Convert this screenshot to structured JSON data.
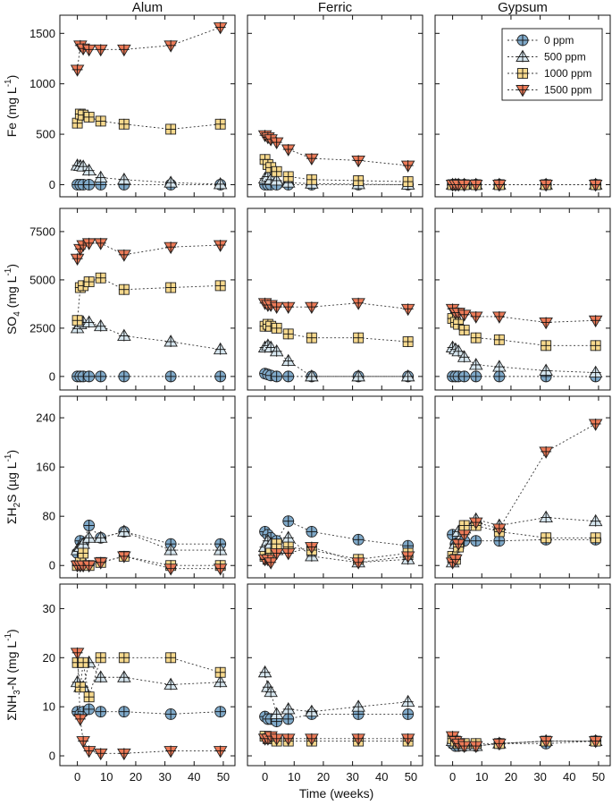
{
  "xlabel": "Time (weeks)",
  "columns": [
    "Alum",
    "Ferric",
    "Gypsum"
  ],
  "rows": [
    {
      "ylabel": "Fe (mg L-1)",
      "ylabel_parts": [
        "Fe (mg L",
        "-1",
        ")"
      ],
      "ylim": [
        -120,
        1680
      ],
      "yticks": [
        0,
        500,
        1000,
        1500
      ]
    },
    {
      "ylabel": "SO4 (mg L-1)",
      "ylabel_parts": [
        "SO",
        "4",
        " (mg L",
        "-1",
        ")"
      ],
      "ylim": [
        -700,
        8700
      ],
      "yticks": [
        0,
        2500,
        5000,
        7500
      ]
    },
    {
      "ylabel": "ΣH2S (µg L-1)",
      "ylabel_parts": [
        "ΣH",
        "2",
        "S (µg L",
        "-1",
        ")"
      ],
      "ylim": [
        -20,
        275
      ],
      "yticks": [
        0,
        80,
        160,
        240
      ]
    },
    {
      "ylabel": "ΣNH3-N (mg L-1)",
      "ylabel_parts": [
        "ΣNH",
        "3",
        "-N (mg L",
        "-1",
        ")"
      ],
      "ylim": [
        -2,
        35
      ],
      "yticks": [
        0,
        10,
        20,
        30
      ]
    }
  ],
  "xlim": [
    -6,
    54
  ],
  "xticks": [
    0,
    10,
    20,
    30,
    40,
    50
  ],
  "legend": {
    "position": "top-right of Fe / Gypsum panel",
    "entries": [
      "0 ppm",
      "500 ppm",
      "1000 ppm",
      "1500 ppm"
    ]
  },
  "series_styles": [
    {
      "name": "0 ppm",
      "marker": "circle",
      "color": "#7fa9c9"
    },
    {
      "name": "500 ppm",
      "marker": "triangle-up",
      "color": "#d6e6ef"
    },
    {
      "name": "1000 ppm",
      "marker": "square",
      "color": "#f7d98d"
    },
    {
      "name": "1500 ppm",
      "marker": "triangle-down",
      "color": "#ec7a57"
    }
  ],
  "chart_data": {
    "type": "scatter",
    "title": "",
    "xlabel": "Time (weeks)",
    "layout": "4 rows x 3 columns of panels",
    "x": [
      0,
      1,
      2,
      4,
      8,
      16,
      32,
      49
    ],
    "panels": [
      {
        "row": "Fe (mg L-1)",
        "column": "Alum",
        "series": [
          {
            "name": "0 ppm",
            "values": [
              0,
              0,
              0,
              0,
              0,
              0,
              0,
              0
            ]
          },
          {
            "name": "500 ppm",
            "values": [
              190,
              185,
              180,
              140,
              70,
              50,
              20,
              5
            ]
          },
          {
            "name": "1000 ppm",
            "values": [
              610,
              700,
              690,
              670,
              630,
              600,
              550,
              600
            ]
          },
          {
            "name": "1500 ppm",
            "values": [
              1140,
              1380,
              1350,
              1340,
              1340,
              1340,
              1380,
              1560
            ]
          }
        ]
      },
      {
        "row": "Fe (mg L-1)",
        "column": "Ferric",
        "series": [
          {
            "name": "0 ppm",
            "values": [
              0,
              0,
              0,
              0,
              0,
              0,
              0,
              0
            ]
          },
          {
            "name": "500 ppm",
            "values": [
              60,
              80,
              50,
              40,
              20,
              10,
              5,
              0
            ]
          },
          {
            "name": "1000 ppm",
            "values": [
              250,
              200,
              170,
              130,
              80,
              50,
              40,
              30
            ]
          },
          {
            "name": "1500 ppm",
            "values": [
              490,
              470,
              450,
              420,
              350,
              260,
              240,
              190
            ]
          }
        ]
      },
      {
        "row": "Fe (mg L-1)",
        "column": "Gypsum",
        "series": [
          {
            "name": "0 ppm",
            "values": [
              0,
              0,
              0,
              0,
              0,
              0,
              0,
              0
            ]
          },
          {
            "name": "500 ppm",
            "values": [
              0,
              0,
              0,
              0,
              0,
              0,
              0,
              0
            ]
          },
          {
            "name": "1000 ppm",
            "values": [
              0,
              0,
              0,
              0,
              0,
              0,
              0,
              0
            ]
          },
          {
            "name": "1500 ppm",
            "values": [
              0,
              0,
              0,
              0,
              0,
              0,
              0,
              0
            ]
          }
        ]
      },
      {
        "row": "SO4 (mg L-1)",
        "column": "Alum",
        "series": [
          {
            "name": "0 ppm",
            "values": [
              0,
              0,
              0,
              0,
              0,
              0,
              0,
              0
            ]
          },
          {
            "name": "500 ppm",
            "values": [
              2500,
              2700,
              2800,
              2800,
              2600,
              2100,
              1800,
              1400
            ]
          },
          {
            "name": "1000 ppm",
            "values": [
              2900,
              4600,
              4700,
              4900,
              5100,
              4500,
              4600,
              4700
            ]
          },
          {
            "name": "1500 ppm",
            "values": [
              6100,
              6600,
              6800,
              6900,
              6900,
              6300,
              6700,
              6800
            ]
          }
        ]
      },
      {
        "row": "SO4 (mg L-1)",
        "column": "Ferric",
        "series": [
          {
            "name": "0 ppm",
            "values": [
              150,
              100,
              50,
              0,
              0,
              0,
              0,
              0
            ]
          },
          {
            "name": "500 ppm",
            "values": [
              1500,
              1600,
              1500,
              1300,
              800,
              0,
              0,
              0
            ]
          },
          {
            "name": "1000 ppm",
            "values": [
              2600,
              2700,
              2600,
              2500,
              2200,
              2000,
              2000,
              1800
            ]
          },
          {
            "name": "1500 ppm",
            "values": [
              3800,
              3700,
              3700,
              3600,
              3600,
              3600,
              3800,
              3500
            ]
          }
        ]
      },
      {
        "row": "SO4 (mg L-1)",
        "column": "Gypsum",
        "series": [
          {
            "name": "0 ppm",
            "values": [
              0,
              0,
              0,
              0,
              0,
              0,
              0,
              0
            ]
          },
          {
            "name": "500 ppm",
            "values": [
              1500,
              1400,
              1300,
              1000,
              600,
              500,
              300,
              200
            ]
          },
          {
            "name": "1000 ppm",
            "values": [
              3000,
              2800,
              2700,
              2400,
              2000,
              1900,
              1600,
              1600
            ]
          },
          {
            "name": "1500 ppm",
            "values": [
              3500,
              3300,
              3300,
              3200,
              3100,
              3100,
              2800,
              2900
            ]
          }
        ]
      },
      {
        "row": "ΣH2S (µg L-1)",
        "column": "Alum",
        "series": [
          {
            "name": "0 ppm",
            "values": [
              20,
              40,
              35,
              65,
              45,
              55,
              35,
              35
            ]
          },
          {
            "name": "500 ppm",
            "values": [
              25,
              30,
              35,
              45,
              45,
              55,
              25,
              25
            ]
          },
          {
            "name": "1000 ppm",
            "values": [
              0,
              5,
              20,
              0,
              5,
              15,
              0,
              0
            ]
          },
          {
            "name": "1500 ppm",
            "values": [
              0,
              0,
              0,
              0,
              5,
              15,
              -5,
              -5
            ]
          }
        ]
      },
      {
        "row": "ΣH2S (µg L-1)",
        "column": "Ferric",
        "series": [
          {
            "name": "0 ppm",
            "values": [
              55,
              50,
              45,
              40,
              72,
              55,
              42,
              32
            ]
          },
          {
            "name": "500 ppm",
            "values": [
              30,
              40,
              35,
              25,
              45,
              15,
              5,
              10
            ]
          },
          {
            "name": "1000 ppm",
            "values": [
              15,
              10,
              20,
              35,
              30,
              25,
              10,
              20
            ]
          },
          {
            "name": "1500 ppm",
            "values": [
              10,
              10,
              5,
              20,
              20,
              30,
              5,
              15
            ]
          }
        ]
      },
      {
        "row": "ΣH2S (µg L-1)",
        "column": "Gypsum",
        "series": [
          {
            "name": "0 ppm",
            "values": [
              50,
              35,
              30,
              40,
              40,
              40,
              42,
              42
            ]
          },
          {
            "name": "500 ppm",
            "values": [
              5,
              35,
              55,
              60,
              75,
              65,
              78,
              72
            ]
          },
          {
            "name": "1000 ppm",
            "values": [
              15,
              10,
              30,
              65,
              65,
              55,
              45,
              45
            ]
          },
          {
            "name": "1500 ppm",
            "values": [
              5,
              10,
              35,
              50,
              70,
              60,
              185,
              230
            ]
          }
        ]
      },
      {
        "row": "ΣNH3-N (mg L-1)",
        "column": "Alum",
        "series": [
          {
            "name": "0 ppm",
            "values": [
              9,
              8.5,
              9,
              9.5,
              9,
              9,
              8.5,
              9
            ]
          },
          {
            "name": "500 ppm",
            "values": [
              15,
              14,
              14,
              19,
              16,
              16,
              14.5,
              15
            ]
          },
          {
            "name": "1000 ppm",
            "values": [
              19,
              14,
              19,
              12,
              20,
              20,
              20,
              17
            ]
          },
          {
            "name": "1500 ppm",
            "values": [
              21,
              7.5,
              3,
              1,
              0.5,
              0.5,
              1,
              1
            ]
          }
        ]
      },
      {
        "row": "ΣNH3-N (mg L-1)",
        "column": "Ferric",
        "series": [
          {
            "name": "0 ppm",
            "values": [
              8,
              7.5,
              7.5,
              7,
              7.5,
              8.5,
              8.5,
              8.5
            ]
          },
          {
            "name": "500 ppm",
            "values": [
              17,
              14,
              13,
              8.5,
              9.5,
              9,
              10,
              11
            ]
          },
          {
            "name": "1000 ppm",
            "values": [
              4,
              3.5,
              3.5,
              3,
              3,
              3,
              3,
              3
            ]
          },
          {
            "name": "1500 ppm",
            "values": [
              3.5,
              3.5,
              4,
              3.5,
              3.5,
              3.5,
              3.5,
              3.5
            ]
          }
        ]
      },
      {
        "row": "ΣNH3-N (mg L-1)",
        "column": "Gypsum",
        "series": [
          {
            "name": "0 ppm",
            "values": [
              2.5,
              2,
              2,
              2,
              2,
              2.5,
              2.5,
              3
            ]
          },
          {
            "name": "500 ppm",
            "values": [
              3,
              2.5,
              2.5,
              2,
              2,
              2.5,
              3,
              3
            ]
          },
          {
            "name": "1000 ppm",
            "values": [
              3.5,
              3,
              2.5,
              2.5,
              2.5,
              2.5,
              3,
              3
            ]
          },
          {
            "name": "1500 ppm",
            "values": [
              4,
              3,
              2.5,
              2,
              2,
              2.5,
              3,
              3
            ]
          }
        ]
      }
    ]
  }
}
